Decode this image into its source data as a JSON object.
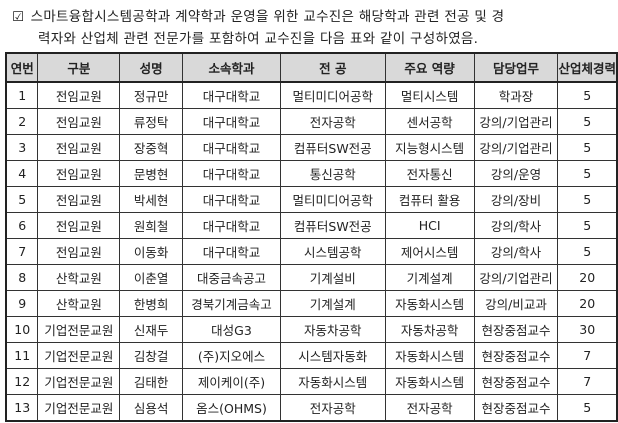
{
  "intro": {
    "checkbox_icon": "checked-box-icon",
    "line1": "스마트융합시스템공학과 계약학과 운영을 위한 교수진은 해당학과 관련 전공 및 경",
    "line2": "력자와 산업체 관련 전문가를 포함하여 교수진을 다음 표와 같이 구성하였음."
  },
  "table": {
    "headers": [
      "연번",
      "구분",
      "성명",
      "소속학과",
      "전  공",
      "주요 역량",
      "담당업무",
      "산업체경력"
    ],
    "rows": [
      [
        "1",
        "전임교원",
        "정규만",
        "대구대학교",
        "멀티미디어공학",
        "멀티시스템",
        "학과장",
        "5"
      ],
      [
        "2",
        "전임교원",
        "류정탁",
        "대구대학교",
        "전자공학",
        "센서공학",
        "강의/기업관리",
        "5"
      ],
      [
        "3",
        "전임교원",
        "장중혁",
        "대구대학교",
        "컴퓨터SW전공",
        "지능형시스템",
        "강의/기업관리",
        "5"
      ],
      [
        "4",
        "전임교원",
        "문병현",
        "대구대학교",
        "통신공학",
        "전자통신",
        "강의/운영",
        "5"
      ],
      [
        "5",
        "전임교원",
        "박세현",
        "대구대학교",
        "멀티미디어공학",
        "컴퓨터 활용",
        "강의/장비",
        "5"
      ],
      [
        "6",
        "전임교원",
        "원희철",
        "대구대학교",
        "컴퓨터SW전공",
        "HCI",
        "강의/학사",
        "5"
      ],
      [
        "7",
        "전임교원",
        "이동화",
        "대구대학교",
        "시스템공학",
        "제어시스템",
        "강의/학사",
        "5"
      ],
      [
        "8",
        "산학교원",
        "이춘열",
        "대중금속공고",
        "기계설비",
        "기계설계",
        "강의/기업관리",
        "20"
      ],
      [
        "9",
        "산학교원",
        "한병희",
        "경북기계금속고",
        "기계설계",
        "자동화시스템",
        "강의/비교과",
        "20"
      ],
      [
        "10",
        "기업전문교원",
        "신재두",
        "대성G3",
        "자동차공학",
        "자동차공학",
        "현장중점교수",
        "30"
      ],
      [
        "11",
        "기업전문교원",
        "김창걸",
        "(주)지오에스",
        "시스템자동화",
        "자동화시스템",
        "현장중점교수",
        "7"
      ],
      [
        "12",
        "기업전문교원",
        "김태한",
        "제이케이(주)",
        "자동화시스템",
        "자동화시스템",
        "현장중점교수",
        "7"
      ],
      [
        "13",
        "기업전문교원",
        "심용석",
        "옴스(OHMS)",
        "전자공학",
        "전자공학",
        "현장중점교수",
        "5"
      ]
    ]
  }
}
